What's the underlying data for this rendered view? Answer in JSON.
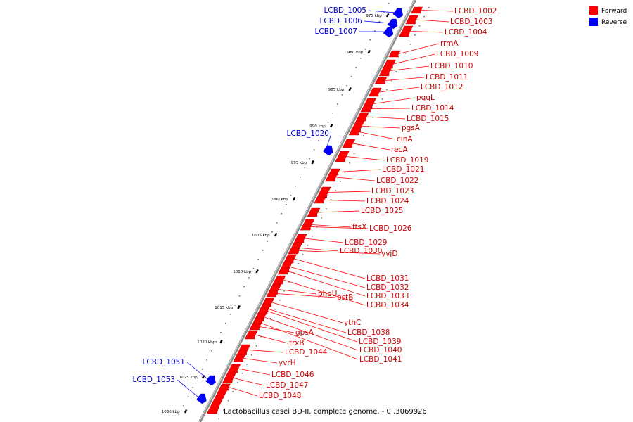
{
  "legend": [
    {
      "label": "Forward",
      "color": "#ff0000"
    },
    {
      "label": "Reverse",
      "color": "#0000ff"
    }
  ],
  "caption": "Lactobacillus casei BD-II, complete genome. - 0..3069926",
  "colors": {
    "forward": "#ff0000",
    "reverse": "#0000ff",
    "forward_label": "#cc0000",
    "reverse_label": "#0000cc",
    "backbone": "#9a9a9a"
  },
  "ticks": [
    "975 kbp",
    "980 kbp",
    "985 kbp",
    "990 kbp",
    "995 kbp",
    "1000 kbp",
    "1005 kbp",
    "1010 kbp",
    "1015 kbp",
    "1020 kbp",
    "1025 kbp",
    "1030 kbp"
  ],
  "genes_forward": [
    "LCBD_1002",
    "LCBD_1003",
    "LCBD_1004",
    "rrmA",
    "LCBD_1009",
    "LCBD_1010",
    "LCBD_1011",
    "LCBD_1012",
    "pqqL",
    "LCBD_1014",
    "LCBD_1015",
    "pgsA",
    "cinA",
    "recA",
    "LCBD_1019",
    "LCBD_1021",
    "LCBD_1022",
    "LCBD_1023",
    "LCBD_1024",
    "LCBD_1025",
    "ftsX",
    "LCBD_1026",
    "LCBD_1029",
    "LCBD_1030",
    "yvjD",
    "LCBD_1031",
    "LCBD_1032",
    "LCBD_1033",
    "LCBD_1034",
    "phoU",
    "pstB",
    "ythC",
    "LCBD_1038",
    "LCBD_1039",
    "LCBD_1040",
    "LCBD_1041",
    "gpsA",
    "trxB",
    "LCBD_1044",
    "yvrH",
    "LCBD_1046",
    "LCBD_1047",
    "LCBD_1048"
  ],
  "genes_reverse": [
    "LCBD_1005",
    "LCBD_1006",
    "LCBD_1007",
    "LCBD_1020",
    "LCBD_1051",
    "LCBD_1053"
  ]
}
